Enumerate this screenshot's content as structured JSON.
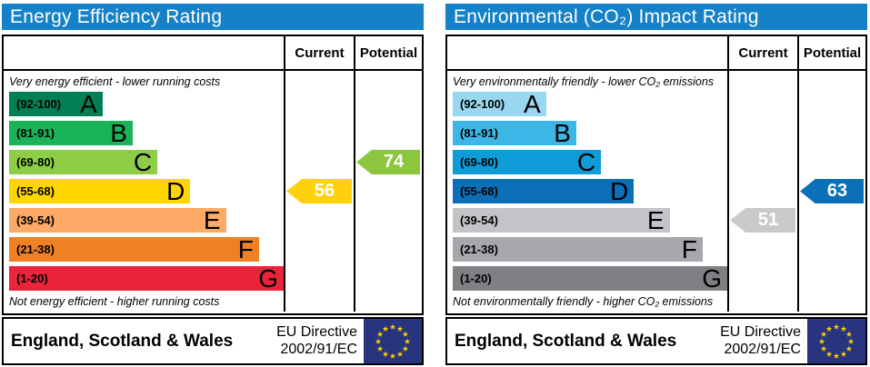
{
  "flag": {
    "bg": "#29347e",
    "star": "#ffcc00"
  },
  "panels": [
    {
      "title": "Energy Efficiency Rating",
      "title_bg": "#1581c6",
      "header": {
        "current": "Current",
        "potential": "Potential"
      },
      "top_caption": "Very energy efficient - lower running costs",
      "bottom_caption": "Not energy efficient - higher running costs",
      "bands": [
        {
          "range": "(92-100)",
          "letter": "A",
          "color": "#008054",
          "width": "34%"
        },
        {
          "range": "(81-91)",
          "letter": "B",
          "color": "#19b459",
          "width": "45%"
        },
        {
          "range": "(69-80)",
          "letter": "C",
          "color": "#8dce46",
          "width": "54%"
        },
        {
          "range": "(55-68)",
          "letter": "D",
          "color": "#ffd500",
          "width": "66%"
        },
        {
          "range": "(39-54)",
          "letter": "E",
          "color": "#fcaa65",
          "width": "79%"
        },
        {
          "range": "(21-38)",
          "letter": "F",
          "color": "#ef8023",
          "width": "91%"
        },
        {
          "range": "(1-20)",
          "letter": "G",
          "color": "#e9243b",
          "width": "100%"
        }
      ],
      "current": {
        "value": "56",
        "color": "#ffd10c",
        "band_index": 3
      },
      "potential": {
        "value": "74",
        "color": "#8cc63f",
        "band_index": 2
      },
      "footer": {
        "region": "England, Scotland & Wales",
        "directive_line1": "EU Directive",
        "directive_line2": "2002/91/EC"
      }
    },
    {
      "title": "Environmental (CO₂) Impact Rating",
      "title_bg": "#1581c6",
      "header": {
        "current": "Current",
        "potential": "Potential"
      },
      "top_caption": "Very environmentally friendly - lower CO₂ emissions",
      "bottom_caption": "Not environmentally friendly - higher CO₂ emissions",
      "bands": [
        {
          "range": "(92-100)",
          "letter": "A",
          "color": "#99d6f0",
          "width": "34%"
        },
        {
          "range": "(81-91)",
          "letter": "B",
          "color": "#3cb6e6",
          "width": "45%"
        },
        {
          "range": "(69-80)",
          "letter": "C",
          "color": "#0d9cd8",
          "width": "54%"
        },
        {
          "range": "(55-68)",
          "letter": "D",
          "color": "#0c70b8",
          "width": "66%"
        },
        {
          "range": "(39-54)",
          "letter": "E",
          "color": "#c3c4c7",
          "width": "79%"
        },
        {
          "range": "(21-38)",
          "letter": "F",
          "color": "#a6a8ab",
          "width": "91%"
        },
        {
          "range": "(1-20)",
          "letter": "G",
          "color": "#7e8083",
          "width": "100%"
        }
      ],
      "current": {
        "value": "51",
        "color": "#c9cacc",
        "band_index": 4
      },
      "potential": {
        "value": "63",
        "color": "#0c70b8",
        "band_index": 3
      },
      "footer": {
        "region": "England, Scotland & Wales",
        "directive_line1": "EU Directive",
        "directive_line2": "2002/91/EC"
      }
    }
  ],
  "chart_data": [
    {
      "type": "bar",
      "title": "Energy Efficiency Rating",
      "categories": [
        "A (92-100)",
        "B (81-91)",
        "C (69-80)",
        "D (55-68)",
        "E (39-54)",
        "F (21-38)",
        "G (1-20)"
      ],
      "band_bar_widths_pct": [
        34,
        45,
        54,
        66,
        79,
        91,
        100
      ],
      "series": [
        {
          "name": "Current",
          "values": [
            56
          ],
          "band": "D"
        },
        {
          "name": "Potential",
          "values": [
            74
          ],
          "band": "C"
        }
      ],
      "scale_range": [
        1,
        100
      ],
      "top_caption": "Very energy efficient - lower running costs",
      "bottom_caption": "Not energy efficient - higher running costs",
      "region_label": "England, Scotland & Wales",
      "directive_label": "EU Directive 2002/91/EC"
    },
    {
      "type": "bar",
      "title": "Environmental (CO₂) Impact Rating",
      "categories": [
        "A (92-100)",
        "B (81-91)",
        "C (69-80)",
        "D (55-68)",
        "E (39-54)",
        "F (21-38)",
        "G (1-20)"
      ],
      "band_bar_widths_pct": [
        34,
        45,
        54,
        66,
        79,
        91,
        100
      ],
      "series": [
        {
          "name": "Current",
          "values": [
            51
          ],
          "band": "E"
        },
        {
          "name": "Potential",
          "values": [
            63
          ],
          "band": "D"
        }
      ],
      "scale_range": [
        1,
        100
      ],
      "top_caption": "Very environmentally friendly - lower CO₂ emissions",
      "bottom_caption": "Not environmentally friendly - higher CO₂ emissions",
      "region_label": "England, Scotland & Wales",
      "directive_label": "EU Directive 2002/91/EC"
    }
  ]
}
